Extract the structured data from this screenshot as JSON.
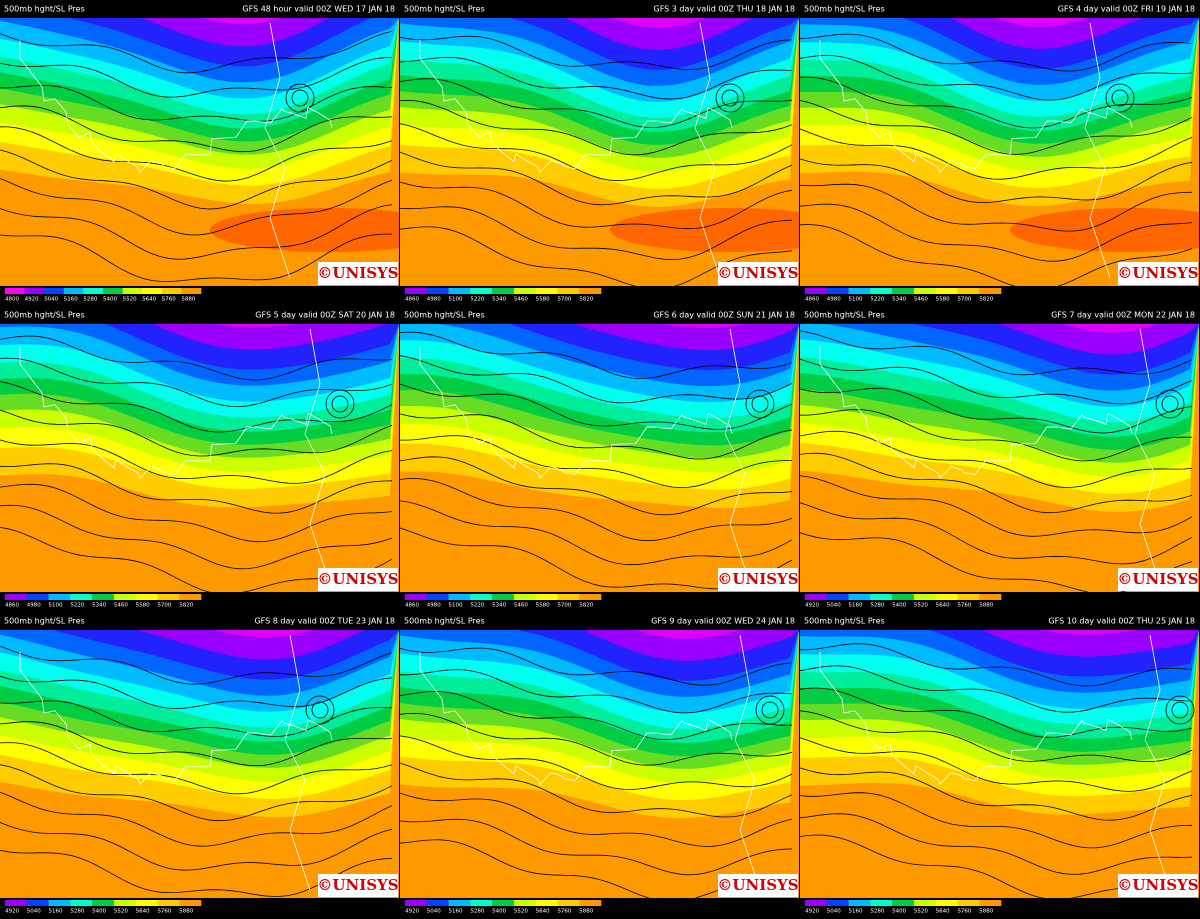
{
  "panels": [
    {
      "product": "500mb hght/SL Pres",
      "valid": "GFS 48 hour valid 00Z WED 17 JAN 18",
      "logo": "©UNISYS",
      "scale": [
        "4800",
        "4920",
        "5040",
        "5160",
        "5280",
        "5400",
        "5520",
        "5640",
        "5760",
        "5880"
      ]
    },
    {
      "product": "500mb hght/SL Pres",
      "valid": "GFS 3 day valid 00Z THU 18 JAN 18",
      "logo": "©UNISYS",
      "scale": [
        "4860",
        "4980",
        "5100",
        "5220",
        "5340",
        "5460",
        "5580",
        "5700",
        "5820"
      ]
    },
    {
      "product": "500mb hght/SL Pres",
      "valid": "GFS 4 day valid 00Z FRI 19 JAN 18",
      "logo": "©UNISYS",
      "scale": [
        "4860",
        "4980",
        "5100",
        "5220",
        "5340",
        "5460",
        "5580",
        "5700",
        "5820"
      ]
    },
    {
      "product": "500mb hght/SL Pres",
      "valid": "GFS 5 day valid 00Z SAT 20 JAN 18",
      "logo": "©UNISYS",
      "scale": [
        "4860",
        "4980",
        "5100",
        "5220",
        "5340",
        "5460",
        "5580",
        "5700",
        "5820"
      ]
    },
    {
      "product": "500mb hght/SL Pres",
      "valid": "GFS 6 day valid 00Z SUN 21 JAN 18",
      "logo": "©UNISYS",
      "scale": [
        "4860",
        "4980",
        "5100",
        "5220",
        "5340",
        "5460",
        "5580",
        "5700",
        "5820"
      ]
    },
    {
      "product": "500mb hght/SL Pres",
      "valid": "GFS 7 day valid 00Z MON 22 JAN 18",
      "logo": "©UNISYS",
      "scale": [
        "4920",
        "5040",
        "5160",
        "5280",
        "5400",
        "5520",
        "5640",
        "5760",
        "5880"
      ]
    },
    {
      "product": "500mb hght/SL Pres",
      "valid": "GFS 8 day valid 00Z TUE 23 JAN 18",
      "logo": "©UNISYS",
      "scale": [
        "4920",
        "5040",
        "5160",
        "5280",
        "5400",
        "5520",
        "5640",
        "5760",
        "5880"
      ]
    },
    {
      "product": "500mb hght/SL Pres",
      "valid": "GFS 9 day valid 00Z WED 24 JAN 18",
      "logo": "©UNISYS",
      "scale": [
        "4920",
        "5040",
        "5160",
        "5280",
        "5400",
        "5520",
        "5640",
        "5760",
        "5880"
      ]
    },
    {
      "product": "500mb hght/SL Pres",
      "valid": "GFS 10 day valid 00Z THU 25 JAN 18",
      "logo": "©UNISYS",
      "scale": [
        "4920",
        "5040",
        "5160",
        "5280",
        "5400",
        "5520",
        "5640",
        "5760",
        "5880"
      ]
    }
  ]
}
